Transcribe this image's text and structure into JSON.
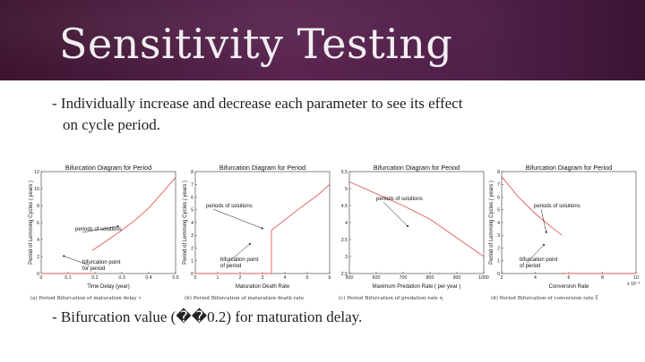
{
  "slide": {
    "title": "Sensitivity Testing",
    "bullet1_line1": "- Individually increase and decrease each parameter to see its effect",
    "bullet1_line2": "on cycle period.",
    "bullet2": "- Bifurcation value (��0.2) for maturation delay."
  },
  "chart_data": [
    {
      "type": "line",
      "title": "Bifurcation Diagram for Period",
      "xlabel": "Time Delay (year)",
      "ylabel": "Period of Lemming Cycles ( years )",
      "xlim": [
        0,
        0.5
      ],
      "ylim": [
        0,
        12
      ],
      "xticks": [
        "0",
        "0.1",
        "0.2",
        "0.3",
        "0.4",
        "0.5"
      ],
      "yticks": [
        "0",
        "2",
        "4",
        "6",
        "8",
        "10",
        "12"
      ],
      "series": [
        {
          "x": [
            0.0,
            0.19
          ],
          "y": [
            0,
            0
          ]
        },
        {
          "x": [
            0.19,
            0.25,
            0.3,
            0.35,
            0.4,
            0.45,
            0.5
          ],
          "y": [
            2.7,
            4.0,
            5.1,
            6.3,
            7.7,
            9.5,
            11.3
          ]
        }
      ],
      "annotations": [
        "periods of solutions",
        "bifurcation point for period"
      ],
      "caption": "(a) Period Bifurcation of maturation delay τ"
    },
    {
      "type": "line",
      "title": "Bifurcation Diagram for Period",
      "xlabel": "Maturation Death Rate",
      "ylabel": "Period of Lemming Cycles ( years )",
      "xlim": [
        0,
        6
      ],
      "ylim": [
        0,
        8
      ],
      "xticks": [
        "0",
        "1",
        "2",
        "3",
        "4",
        "5",
        "6"
      ],
      "yticks": [
        "0",
        "1",
        "2",
        "3",
        "4",
        "5",
        "6",
        "7",
        "8"
      ],
      "series": [
        {
          "x": [
            0,
            3.4
          ],
          "y": [
            0,
            0
          ]
        },
        {
          "x": [
            3.4,
            3.4
          ],
          "y": [
            0,
            3.4
          ]
        },
        {
          "x": [
            3.4,
            4.5,
            5.5,
            6.0
          ],
          "y": [
            3.4,
            4.9,
            6.2,
            7.0
          ]
        }
      ],
      "annotations": [
        "periods of solutions",
        "bifurcation point of period"
      ],
      "caption": "(b) Period Bifurcation of maturation death rate"
    },
    {
      "type": "line",
      "title": "Bifurcation Diagram for Period",
      "xlabel": "Maximum Predation Rate ( per year )",
      "ylabel": "",
      "xlim": [
        500,
        1000
      ],
      "ylim": [
        2.5,
        5.5
      ],
      "xticks": [
        "500",
        "600",
        "700",
        "800",
        "900",
        "1000"
      ],
      "yticks": [
        "2.5",
        "3",
        "3.5",
        "4",
        "4.5",
        "5",
        "5.5"
      ],
      "series": [
        {
          "x": [
            500,
            600,
            700,
            800,
            900,
            1000
          ],
          "y": [
            5.2,
            4.85,
            4.5,
            4.1,
            3.55,
            3.0
          ]
        }
      ],
      "annotations": [
        "periods of solutions"
      ],
      "caption": "(c) Period Bifurcation of predation rate η"
    },
    {
      "type": "line",
      "title": "Bifurcation Diagram for Period",
      "xlabel": "Conversion Rate",
      "ylabel": "Period of Lemming Cycles ( years )",
      "xlim": [
        2,
        10
      ],
      "ylim": [
        0,
        8
      ],
      "xticks": [
        "2",
        "4",
        "6",
        "8",
        "10"
      ],
      "yticks": [
        "0",
        "1",
        "2",
        "3",
        "4",
        "5",
        "6",
        "7",
        "8"
      ],
      "x_multiplier": "x 10⁻³",
      "series": [
        {
          "x": [
            2,
            3,
            4,
            5,
            5.6
          ],
          "y": [
            7.6,
            6.0,
            4.7,
            3.6,
            3.0
          ]
        },
        {
          "x": [
            5.6,
            10
          ],
          "y": [
            0,
            0
          ]
        }
      ],
      "annotations": [
        "periods of solutions",
        "bifurcation point of period"
      ],
      "caption": "(d) Period Bifurcation of conversion rate ξ"
    }
  ]
}
